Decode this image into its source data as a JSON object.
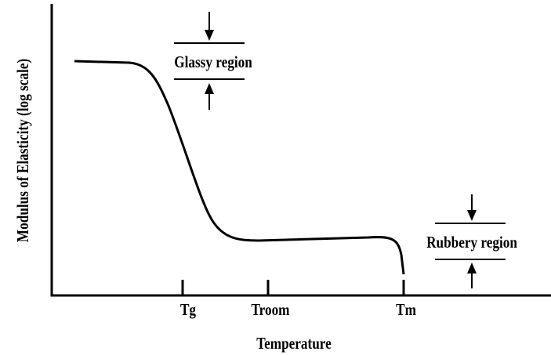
{
  "axes": {
    "y_label": "Modulus of Elasticity (log scale)",
    "x_label": "Temperature",
    "x_ticks": [
      "Tg",
      "Troom",
      "Tm"
    ]
  },
  "annotations": [
    "Glassy region",
    "Rubbery region"
  ]
}
